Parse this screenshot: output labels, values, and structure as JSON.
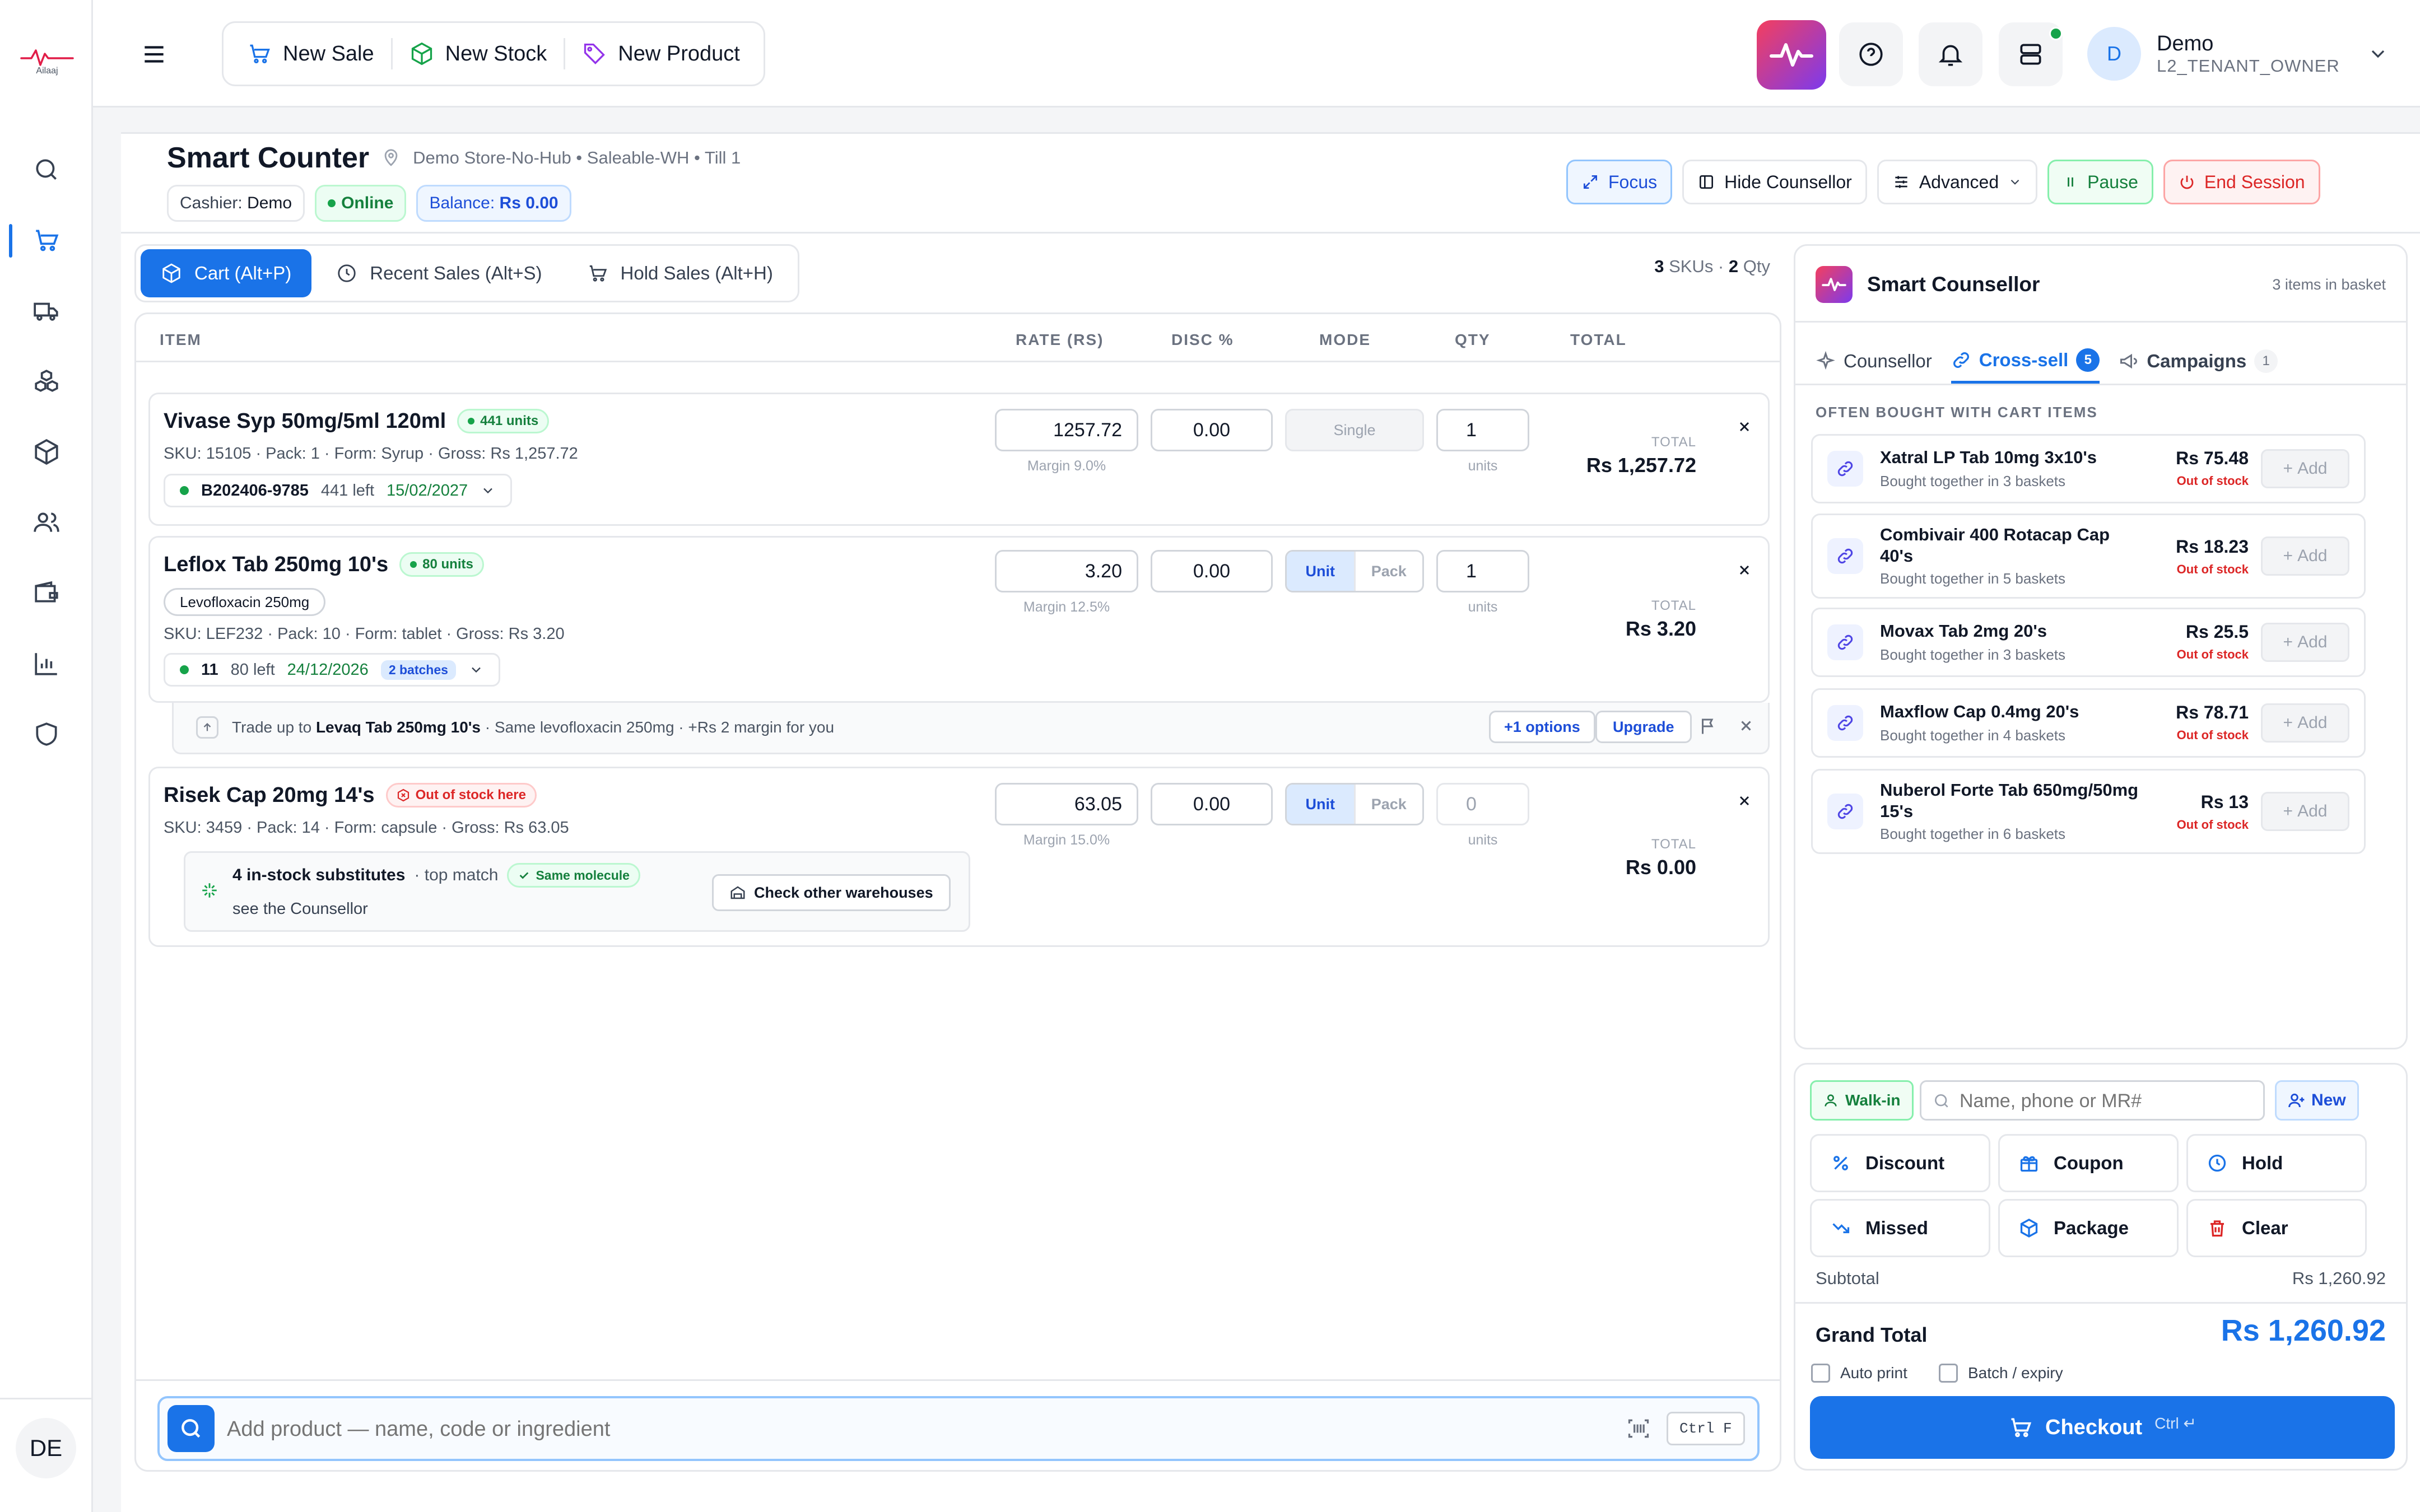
{
  "brand": {
    "name": "Ailaaj"
  },
  "topbar": {
    "new_sale": "New Sale",
    "new_stock": "New Stock",
    "new_product": "New Product",
    "user_initial": "D",
    "user_name": "Demo",
    "user_role": "L2_TENANT_OWNER"
  },
  "rail": {
    "avatar": "DE"
  },
  "header": {
    "title": "Smart Counter",
    "location": "Demo Store-No-Hub • Saleable-WH • Till 1",
    "cashier_label": "Cashier:",
    "cashier": "Demo",
    "status": "Online",
    "balance_label": "Balance:",
    "balance": "Rs 0.00",
    "buttons": {
      "focus": "Focus",
      "hide_counsellor": "Hide Counsellor",
      "advanced": "Advanced",
      "pause": "Pause",
      "end_session": "End Session"
    }
  },
  "tabs": [
    {
      "label": "Cart (Alt+P)"
    },
    {
      "label": "Recent Sales (Alt+S)"
    },
    {
      "label": "Hold Sales (Alt+H)"
    }
  ],
  "summary": {
    "skus": "3",
    "skus_label": "SKUs ·",
    "qty": "2",
    "qty_label": "Qty"
  },
  "columns": {
    "item": "ITEM",
    "rate": "RATE (RS)",
    "disc": "DISC %",
    "mode": "MODE",
    "qty": "QTY",
    "total": "TOTAL"
  },
  "items": [
    {
      "name": "Vivase Syp 50mg/5ml 120ml",
      "stock_badge": "441 units",
      "meta": "SKU: 15105 · Pack: 1 · Form: Syrup · Gross: Rs 1,257.72",
      "batch": "B202406-9785",
      "batch_left": "441 left",
      "batch_expiry": "15/02/2027",
      "rate": "1257.72",
      "margin": "Margin 9.0%",
      "disc": "0.00",
      "mode": "Single",
      "qty": "1",
      "qty_unit": "units",
      "total_label": "TOTAL",
      "total": "Rs 1,257.72"
    },
    {
      "name": "Leflox Tab 250mg 10's",
      "stock_badge": "80 units",
      "molecule": "Levofloxacin 250mg",
      "meta": "SKU: LEF232 · Pack: 10 · Form: tablet · Gross: Rs 3.20",
      "batch": "11",
      "batch_left": "80 left",
      "batch_expiry": "24/12/2026",
      "batches_tag": "2 batches",
      "rate": "3.20",
      "margin": "Margin 12.5%",
      "disc": "0.00",
      "mode_unit": "Unit",
      "mode_pack": "Pack",
      "qty": "1",
      "qty_unit": "units",
      "total_label": "TOTAL",
      "total": "Rs 3.20",
      "upsell": {
        "prefix": "Trade up to",
        "product": "Levaq Tab 250mg 10's",
        "suffix": "· Same levofloxacin 250mg · +Rs 2 margin for you",
        "options": "+1 options",
        "upgrade": "Upgrade"
      }
    },
    {
      "name": "Risek Cap 20mg 14's",
      "stock_badge": "Out of stock here",
      "meta": "SKU: 3459 · Pack: 14 · Form: capsule · Gross: Rs 63.05",
      "rate": "63.05",
      "margin": "Margin 15.0%",
      "disc": "0.00",
      "mode_unit": "Unit",
      "mode_pack": "Pack",
      "qty": "0",
      "qty_unit": "units",
      "total_label": "TOTAL",
      "total": "Rs 0.00",
      "subs": {
        "title": "4 in-stock substitutes",
        "top": "· top match",
        "same": "Same molecule",
        "hint": "see the Counsellor",
        "check": "Check other warehouses"
      }
    }
  ],
  "search": {
    "placeholder": "Add product — name, code or ingredient",
    "shortcut": "Ctrl F"
  },
  "counsellor": {
    "title": "Smart Counsellor",
    "basket": "3 items in basket",
    "tabs": [
      {
        "label": "Counsellor"
      },
      {
        "label": "Cross-sell",
        "count": "5"
      },
      {
        "label": "Campaigns",
        "count": "1"
      }
    ],
    "section": "OFTEN BOUGHT WITH CART ITEMS",
    "items": [
      {
        "name": "Xatral LP Tab 10mg 3x10's",
        "sub": "Bought together in 3 baskets",
        "price": "Rs 75.48",
        "status": "Out of stock",
        "add": "Add"
      },
      {
        "name": "Combivair 400 Rotacap Cap 40's",
        "sub": "Bought together in 5 baskets",
        "price": "Rs 18.23",
        "status": "Out of stock",
        "add": "Add"
      },
      {
        "name": "Movax Tab 2mg 20's",
        "sub": "Bought together in 3 baskets",
        "price": "Rs 25.5",
        "status": "Out of stock",
        "add": "Add"
      },
      {
        "name": "Maxflow Cap 0.4mg 20's",
        "sub": "Bought together in 4 baskets",
        "price": "Rs 78.71",
        "status": "Out of stock",
        "add": "Add"
      },
      {
        "name": "Nuberol Forte Tab 650mg/50mg 15's",
        "sub": "Bought together in 6 baskets",
        "price": "Rs 13",
        "status": "Out of stock",
        "add": "Add"
      }
    ]
  },
  "checkout": {
    "walkin": "Walk-in",
    "customer_placeholder": "Name, phone or MR#",
    "new": "New",
    "actions": {
      "discount": "Discount",
      "coupon": "Coupon",
      "hold": "Hold",
      "missed": "Missed",
      "package": "Package",
      "clear": "Clear"
    },
    "subtotal_label": "Subtotal",
    "subtotal": "Rs 1,260.92",
    "grand_label": "Grand Total",
    "grand": "Rs 1,260.92",
    "auto_print": "Auto print",
    "batch_expiry": "Batch / expiry",
    "checkout": "Checkout",
    "checkout_shortcut": "Ctrl ↵"
  },
  "colors": {
    "primary": "#1a73e8",
    "success": "#16a34a",
    "danger": "#dc2626",
    "purple": "#9333ea"
  }
}
